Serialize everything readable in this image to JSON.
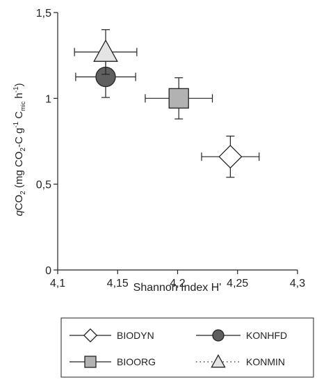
{
  "chart_data": {
    "type": "scatter",
    "xlabel": "Shannon Index H'",
    "ylabel": {
      "q": "q",
      "co": "CO",
      "sub2": "2",
      "open": " (mg CO",
      "dash": "-C g",
      "sup": "-1",
      "c": " C",
      "mic": "mic",
      "h": " h",
      "close": ")"
    },
    "xlim": [
      4.1,
      4.3
    ],
    "ylim": [
      0,
      1.5
    ],
    "x_ticks": [
      {
        "value": 4.1,
        "label": "4,1"
      },
      {
        "value": 4.15,
        "label": "4,15"
      },
      {
        "value": 4.2,
        "label": "4,2"
      },
      {
        "value": 4.25,
        "label": "4,25"
      },
      {
        "value": 4.3,
        "label": "4,3"
      }
    ],
    "y_ticks": [
      {
        "value": 0,
        "label": "0"
      },
      {
        "value": 0.5,
        "label": "0,5"
      },
      {
        "value": 1,
        "label": "1"
      },
      {
        "value": 1.5,
        "label": "1,5"
      }
    ],
    "grid": false,
    "legend_position": "bottom",
    "series": [
      {
        "name": "BIODYN",
        "marker": "diamond",
        "color": "#ffffff",
        "line": "solid",
        "x": 4.244,
        "y": 0.66,
        "x_err": 0.024,
        "y_err": 0.12
      },
      {
        "name": "KONHFD",
        "marker": "circle",
        "color": "#5f5f5f",
        "line": "solid",
        "x": 4.14,
        "y": 1.125,
        "x_err": 0.025,
        "y_err": 0.12
      },
      {
        "name": "BIOORG",
        "marker": "square",
        "color": "#b2b2b2",
        "line": "solid",
        "x": 4.201,
        "y": 1.0,
        "x_err": 0.028,
        "y_err": 0.12
      },
      {
        "name": "KONMIN",
        "marker": "triangle",
        "color": "#e4e4e4",
        "line": "dotted",
        "x": 4.14,
        "y": 1.27,
        "x_err": 0.026,
        "y_err": 0.13
      }
    ]
  }
}
